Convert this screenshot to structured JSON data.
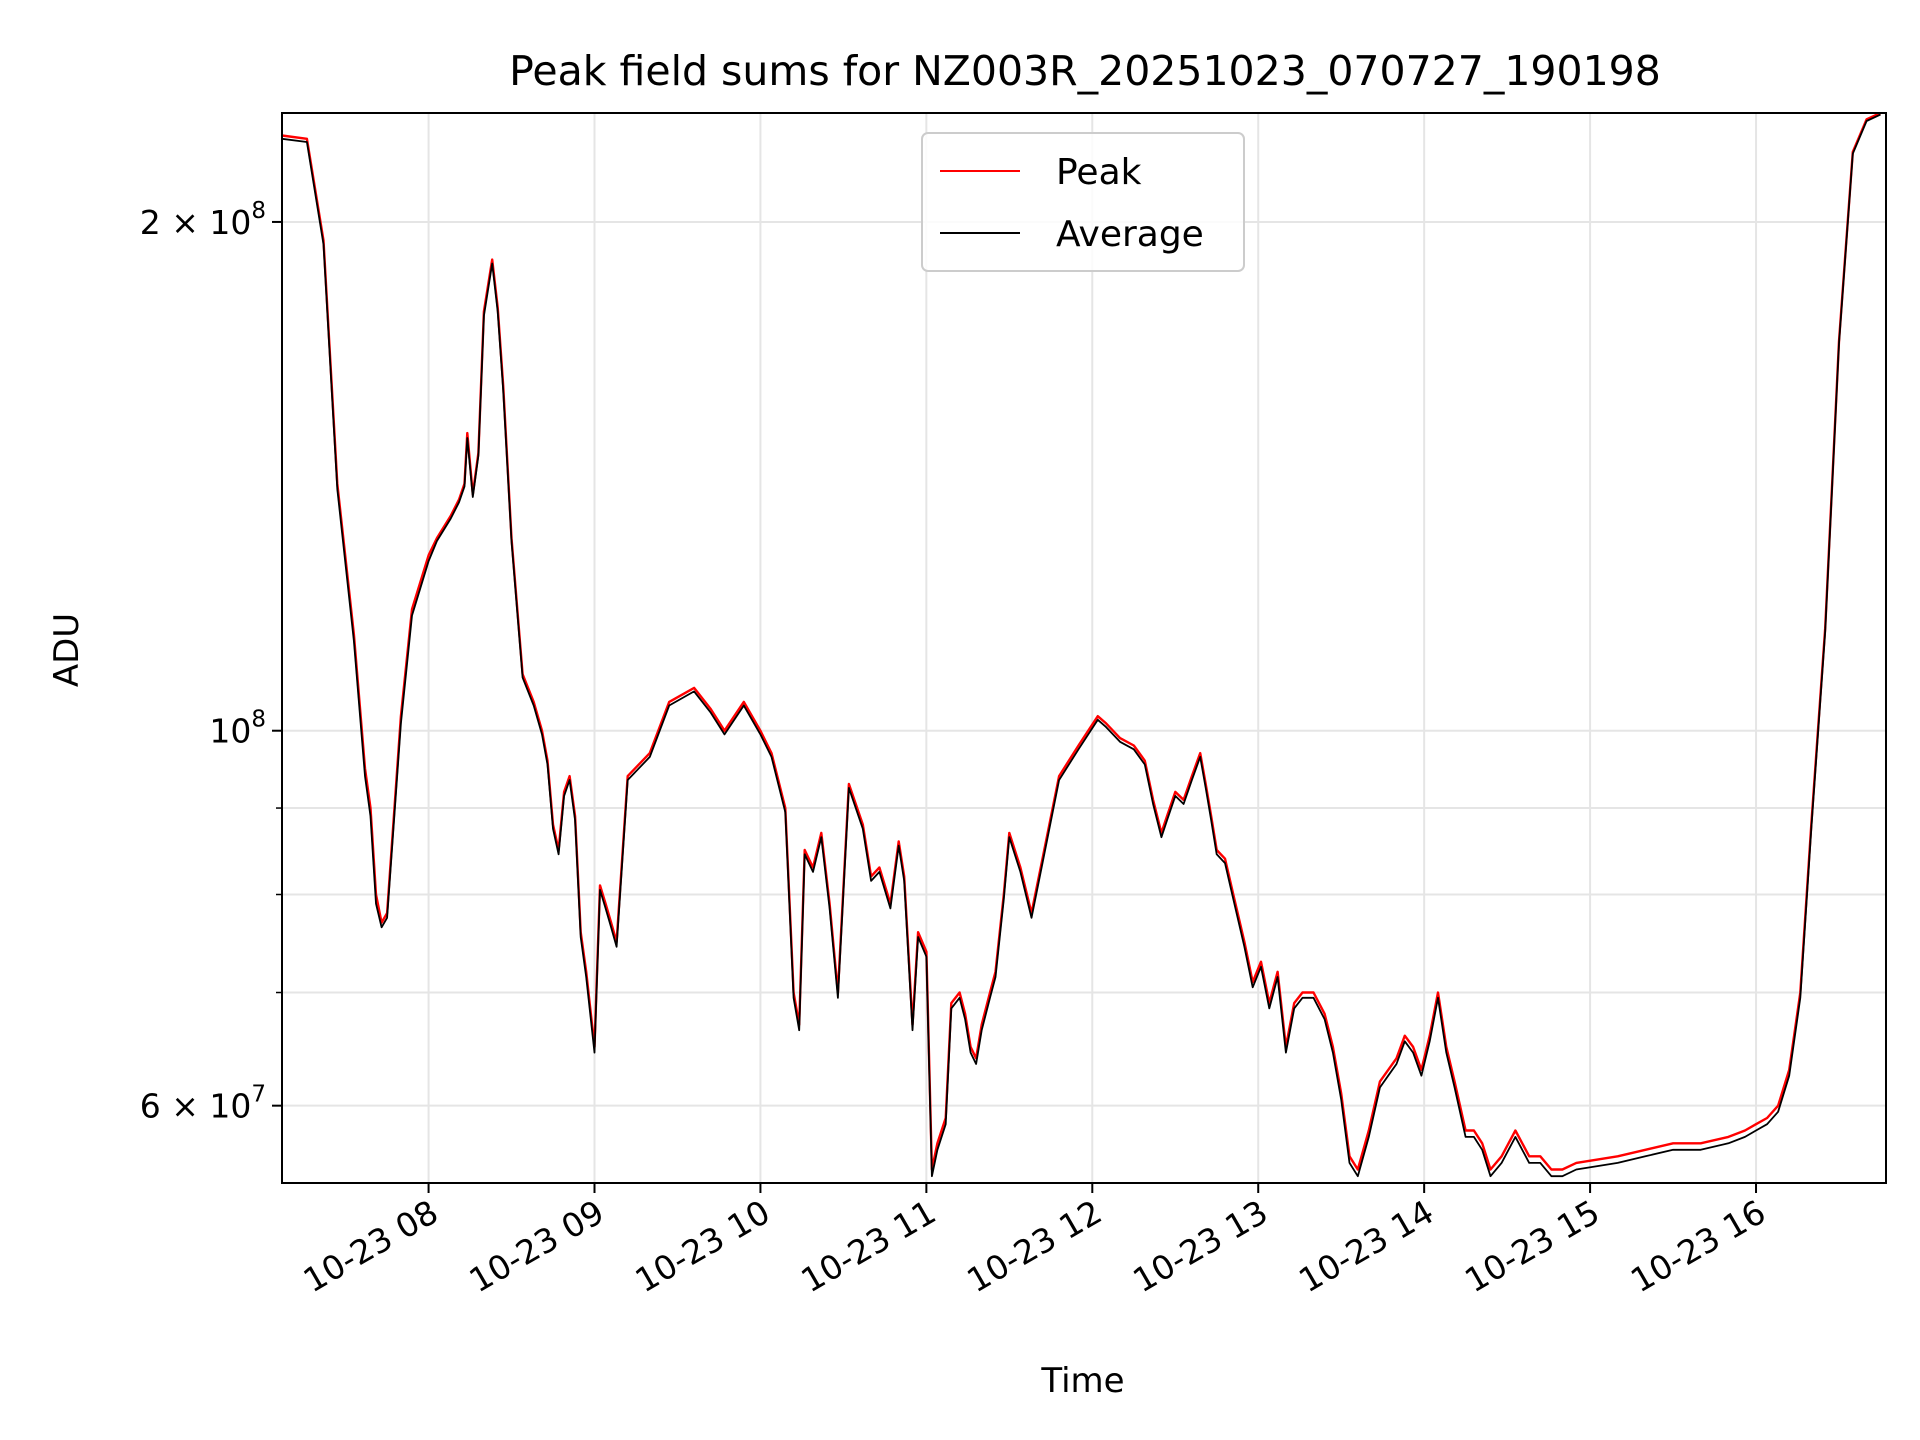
{
  "chart_data": {
    "type": "line",
    "title": "Peak field sums for NZ003R_20251023_070727_190198",
    "xlabel": "Time",
    "ylabel": "ADU",
    "yscale": "log",
    "ylim": [
      54000000,
      232000000
    ],
    "xlim": [
      "10-23 07:07",
      "10-23 16:47"
    ],
    "grid": true,
    "legend_position": "top-center",
    "x_ticks": [
      "10-23 08",
      "10-23 09",
      "10-23 10",
      "10-23 11",
      "10-23 12",
      "10-23 13",
      "10-23 14",
      "10-23 15",
      "10-23 16"
    ],
    "y_ticks": [
      {
        "value": 60000000,
        "mantissa": "6",
        "exp": "7"
      },
      {
        "value": 100000000,
        "mantissa": "",
        "exp": "8"
      },
      {
        "value": 200000000,
        "mantissa": "2",
        "exp": "8"
      }
    ],
    "y_minor_ticks": [
      70000000,
      80000000,
      90000000
    ],
    "series": [
      {
        "name": "Peak",
        "color": "#ff0000",
        "x": [
          "07:07",
          "07:16",
          "07:22",
          "07:27",
          "07:33",
          "07:37",
          "07:39",
          "07:41",
          "07:43",
          "07:45",
          "07:50",
          "07:54",
          "08:00",
          "08:03",
          "08:08",
          "08:11",
          "08:13",
          "08:14",
          "08:16",
          "08:18",
          "08:20",
          "08:23",
          "08:25",
          "08:27",
          "08:30",
          "08:34",
          "08:38",
          "08:41",
          "08:43",
          "08:45",
          "08:47",
          "08:49",
          "08:51",
          "08:53",
          "08:55",
          "08:57",
          "09:00",
          "09:02",
          "09:04",
          "09:06",
          "09:08",
          "09:12",
          "09:20",
          "09:27",
          "09:36",
          "09:42",
          "09:47",
          "09:54",
          "10:00",
          "10:04",
          "10:09",
          "10:12",
          "10:14",
          "10:16",
          "10:19",
          "10:22",
          "10:25",
          "10:28",
          "10:32",
          "10:37",
          "10:40",
          "10:43",
          "10:47",
          "10:50",
          "10:52",
          "10:55",
          "10:57",
          "11:00",
          "11:02",
          "11:04",
          "11:07",
          "11:09",
          "11:12",
          "11:14",
          "11:16",
          "11:18",
          "11:20",
          "11:23",
          "11:25",
          "11:28",
          "11:30",
          "11:34",
          "11:38",
          "11:42",
          "11:48",
          "11:55",
          "12:02",
          "12:05",
          "12:10",
          "12:15",
          "12:19",
          "12:22",
          "12:25",
          "12:27",
          "12:30",
          "12:33",
          "12:36",
          "12:39",
          "12:41",
          "12:43",
          "12:45",
          "12:48",
          "12:51",
          "12:55",
          "12:58",
          "13:01",
          "13:04",
          "13:07",
          "13:10",
          "13:13",
          "13:16",
          "13:20",
          "13:24",
          "13:27",
          "13:30",
          "13:33",
          "13:36",
          "13:40",
          "13:44",
          "13:47",
          "13:50",
          "13:53",
          "13:56",
          "13:59",
          "14:02",
          "14:05",
          "14:08",
          "14:11",
          "14:15",
          "14:18",
          "14:21",
          "14:24",
          "14:28",
          "14:33",
          "14:38",
          "14:42",
          "14:46",
          "14:50",
          "14:55",
          "15:10",
          "15:20",
          "15:30",
          "15:40",
          "15:50",
          "15:56",
          "16:00",
          "16:04",
          "16:08",
          "16:12",
          "16:16",
          "16:20",
          "16:25",
          "16:30",
          "16:35",
          "16:40",
          "16:45"
        ],
        "values": [
          225000000,
          224000000,
          195000000,
          140000000,
          114000000,
          95000000,
          90000000,
          80000000,
          77000000,
          78000000,
          102000000,
          118000000,
          127000000,
          130000000,
          134000000,
          137000000,
          140000000,
          150000000,
          138000000,
          146000000,
          177000000,
          190000000,
          178000000,
          160000000,
          130000000,
          108000000,
          104000000,
          100000000,
          96000000,
          88000000,
          85000000,
          92000000,
          94000000,
          89000000,
          76000000,
          72000000,
          65000000,
          81000000,
          79000000,
          77000000,
          75000000,
          94000000,
          97000000,
          104000000,
          106000000,
          103000000,
          100000000,
          104000000,
          100000000,
          97000000,
          90000000,
          70000000,
          67000000,
          85000000,
          83000000,
          87000000,
          79000000,
          70000000,
          93000000,
          88000000,
          82000000,
          83000000,
          79000000,
          86000000,
          82000000,
          67000000,
          76000000,
          74000000,
          55000000,
          57000000,
          59000000,
          69000000,
          70000000,
          68000000,
          65000000,
          64000000,
          67000000,
          70000000,
          72000000,
          80000000,
          87000000,
          83000000,
          78000000,
          84000000,
          94000000,
          98000000,
          102000000,
          101000000,
          99000000,
          98000000,
          96000000,
          91000000,
          87000000,
          89000000,
          92000000,
          91000000,
          94000000,
          97000000,
          93000000,
          89000000,
          85000000,
          84000000,
          80000000,
          75000000,
          71000000,
          73000000,
          69000000,
          72000000,
          65000000,
          69000000,
          70000000,
          70000000,
          68000000,
          65000000,
          61000000,
          56000000,
          55000000,
          58000000,
          62000000,
          63000000,
          64000000,
          66000000,
          65000000,
          63000000,
          66000000,
          70000000,
          65000000,
          62000000,
          58000000,
          58000000,
          57000000,
          55000000,
          56000000,
          58000000,
          56000000,
          56000000,
          55000000,
          55000000,
          55500000,
          56000000,
          56500000,
          57000000,
          57000000,
          57500000,
          58000000,
          58500000,
          59000000,
          60000000,
          63000000,
          70000000,
          88000000,
          115000000,
          170000000,
          220000000,
          230000000,
          232000000
        ]
      },
      {
        "name": "Average",
        "color": "#000000",
        "x": [
          "07:07",
          "07:16",
          "07:22",
          "07:27",
          "07:33",
          "07:37",
          "07:39",
          "07:41",
          "07:43",
          "07:45",
          "07:50",
          "07:54",
          "08:00",
          "08:03",
          "08:08",
          "08:11",
          "08:13",
          "08:14",
          "08:16",
          "08:18",
          "08:20",
          "08:23",
          "08:25",
          "08:27",
          "08:30",
          "08:34",
          "08:38",
          "08:41",
          "08:43",
          "08:45",
          "08:47",
          "08:49",
          "08:51",
          "08:53",
          "08:55",
          "08:57",
          "09:00",
          "09:02",
          "09:04",
          "09:06",
          "09:08",
          "09:12",
          "09:20",
          "09:27",
          "09:36",
          "09:42",
          "09:47",
          "09:54",
          "10:00",
          "10:04",
          "10:09",
          "10:12",
          "10:14",
          "10:16",
          "10:19",
          "10:22",
          "10:25",
          "10:28",
          "10:32",
          "10:37",
          "10:40",
          "10:43",
          "10:47",
          "10:50",
          "10:52",
          "10:55",
          "10:57",
          "11:00",
          "11:02",
          "11:04",
          "11:07",
          "11:09",
          "11:12",
          "11:14",
          "11:16",
          "11:18",
          "11:20",
          "11:23",
          "11:25",
          "11:28",
          "11:30",
          "11:34",
          "11:38",
          "11:42",
          "11:48",
          "11:55",
          "12:02",
          "12:05",
          "12:10",
          "12:15",
          "12:19",
          "12:22",
          "12:25",
          "12:27",
          "12:30",
          "12:33",
          "12:36",
          "12:39",
          "12:41",
          "12:43",
          "12:45",
          "12:48",
          "12:51",
          "12:55",
          "12:58",
          "13:01",
          "13:04",
          "13:07",
          "13:10",
          "13:13",
          "13:16",
          "13:20",
          "13:24",
          "13:27",
          "13:30",
          "13:33",
          "13:36",
          "13:40",
          "13:44",
          "13:47",
          "13:50",
          "13:53",
          "13:56",
          "13:59",
          "14:02",
          "14:05",
          "14:08",
          "14:11",
          "14:15",
          "14:18",
          "14:21",
          "14:24",
          "14:28",
          "14:33",
          "14:38",
          "14:42",
          "14:46",
          "14:50",
          "14:55",
          "15:10",
          "15:20",
          "15:30",
          "15:40",
          "15:50",
          "15:56",
          "16:00",
          "16:04",
          "16:08",
          "16:12",
          "16:16",
          "16:20",
          "16:25",
          "16:30",
          "16:35",
          "16:40",
          "16:45"
        ],
        "values": [
          224000000,
          223000000,
          194000000,
          139000000,
          113000000,
          94000000,
          89000000,
          79000000,
          76500000,
          77500000,
          101000000,
          117000000,
          126000000,
          129500000,
          133500000,
          136500000,
          139500000,
          149000000,
          137500000,
          145500000,
          176000000,
          189000000,
          177000000,
          159000000,
          129500000,
          107500000,
          103500000,
          99500000,
          95500000,
          87500000,
          84500000,
          91500000,
          93500000,
          88500000,
          75500000,
          71500000,
          64500000,
          80500000,
          78500000,
          76500000,
          74500000,
          93500000,
          96500000,
          103500000,
          105500000,
          102500000,
          99500000,
          103500000,
          99500000,
          96500000,
          89500000,
          69500000,
          66500000,
          84500000,
          82500000,
          86500000,
          78500000,
          69500000,
          92500000,
          87500000,
          81500000,
          82500000,
          78500000,
          85500000,
          81500000,
          66500000,
          75500000,
          73500000,
          54500000,
          56500000,
          58500000,
          68500000,
          69500000,
          67500000,
          64500000,
          63500000,
          66500000,
          69500000,
          71500000,
          79500000,
          86500000,
          82500000,
          77500000,
          83500000,
          93500000,
          97500000,
          101500000,
          100500000,
          98500000,
          97500000,
          95500000,
          90500000,
          86500000,
          88500000,
          91500000,
          90500000,
          93500000,
          96500000,
          92500000,
          88500000,
          84500000,
          83500000,
          79500000,
          74500000,
          70500000,
          72500000,
          68500000,
          71500000,
          64500000,
          68500000,
          69500000,
          69500000,
          67500000,
          64500000,
          60500000,
          55500000,
          54500000,
          57500000,
          61500000,
          62500000,
          63500000,
          65500000,
          64500000,
          62500000,
          65500000,
          69500000,
          64500000,
          61500000,
          57500000,
          57500000,
          56500000,
          54500000,
          55500000,
          57500000,
          55500000,
          55500000,
          54500000,
          54500000,
          55000000,
          55500000,
          56000000,
          56500000,
          56500000,
          57000000,
          57500000,
          58000000,
          58500000,
          59500000,
          62500000,
          69500000,
          87500000,
          114500000,
          169500000,
          219500000,
          229500000,
          231500000
        ]
      }
    ]
  }
}
